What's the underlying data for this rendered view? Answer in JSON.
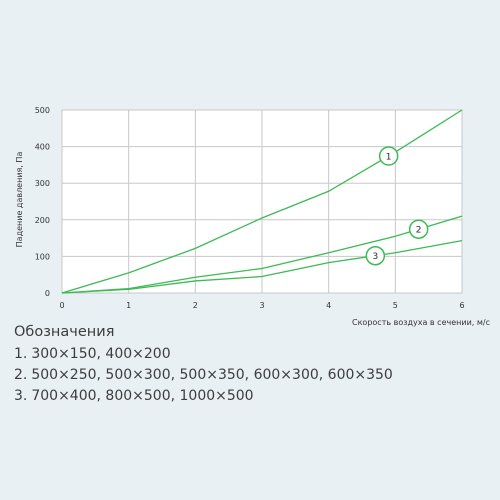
{
  "chart_data": {
    "type": "line",
    "xlabel": "Скорость воздуха в сечении, м/с",
    "ylabel": "Падение давления, Па",
    "xlim": [
      0,
      6
    ],
    "ylim": [
      0,
      500
    ],
    "x_ticks": [
      "0",
      "1",
      "2",
      "3",
      "4",
      "5",
      "6"
    ],
    "y_ticks": [
      "0",
      "100",
      "200",
      "300",
      "400",
      "500"
    ],
    "grid": true,
    "line_color": "#3cba54",
    "grid_color": "#c8c8c8",
    "plot_bg": "#ffffff",
    "series": [
      {
        "name": "1",
        "x": [
          0,
          1,
          2,
          3,
          4,
          5,
          6
        ],
        "y": [
          0,
          55,
          122,
          205,
          278,
          385,
          500
        ],
        "marker_x": 4.9
      },
      {
        "name": "2",
        "x": [
          0,
          1,
          2,
          3,
          4,
          5,
          6
        ],
        "y": [
          0,
          12,
          43,
          67,
          110,
          155,
          210
        ],
        "marker_x": 5.35
      },
      {
        "name": "3",
        "x": [
          0,
          1,
          2,
          3,
          4,
          5,
          6
        ],
        "y": [
          0,
          10,
          33,
          45,
          83,
          110,
          143
        ],
        "marker_x": 4.7
      }
    ]
  },
  "legend": {
    "title": "Обозначения",
    "items": [
      {
        "num": "1.",
        "text": "300×150,  400×200"
      },
      {
        "num": "2.",
        "text": "500×250,  500×300,  500×350,  600×300,  600×350"
      },
      {
        "num": "3.",
        "text": "700×400,  800×500,  1000×500"
      }
    ]
  }
}
